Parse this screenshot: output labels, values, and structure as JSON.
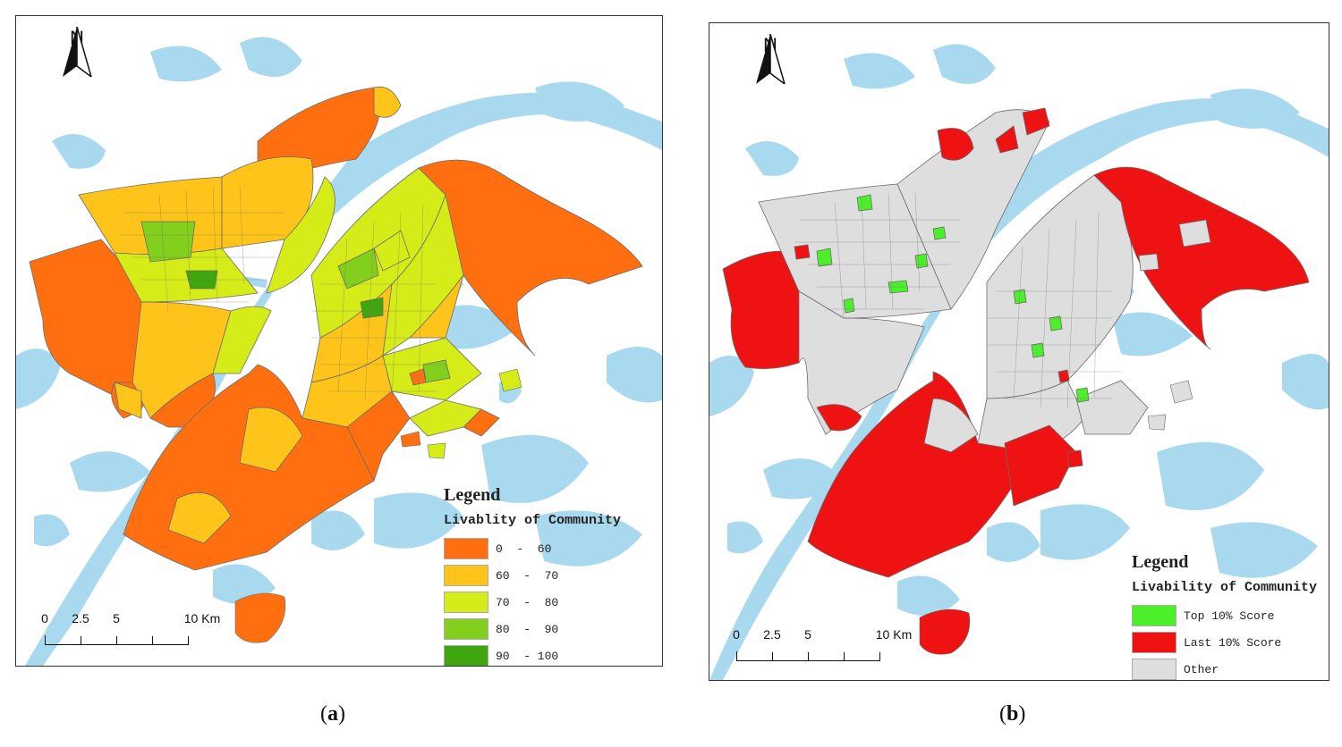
{
  "colors": {
    "water": "#a9d9ee",
    "background": "#ffffff",
    "boundary": "#6b6b6b",
    "band_0_60": "#ff6f0f",
    "band_60_70": "#ffc41a",
    "band_70_80": "#d6ec19",
    "band_80_90": "#83cf1e",
    "band_90_100": "#3fa60d",
    "top10": "#4cf02a",
    "last10": "#ee1212",
    "other": "#dedede"
  },
  "panel_a": {
    "north_label": "N",
    "legend": {
      "title": "Legend",
      "subtitle": "Livablity of Community",
      "items": [
        {
          "label": "0  -  60",
          "color": "#ff6f0f"
        },
        {
          "label": "60  -  70",
          "color": "#ffc41a"
        },
        {
          "label": "70  -  80",
          "color": "#d6ec19"
        },
        {
          "label": "80  -  90",
          "color": "#83cf1e"
        },
        {
          "label": "90  - 100",
          "color": "#3fa60d"
        }
      ]
    },
    "scale": {
      "labels": [
        "0",
        "2.5",
        "5",
        "10 Km"
      ]
    },
    "caption": "a"
  },
  "panel_b": {
    "north_label": "N",
    "legend": {
      "title": "Legend",
      "subtitle": "Livability of Community",
      "items": [
        {
          "label": "Top 10% Score",
          "color": "#4cf02a"
        },
        {
          "label": "Last 10% Score",
          "color": "#ee1212"
        },
        {
          "label": "Other",
          "color": "#dedede"
        }
      ]
    },
    "scale": {
      "labels": [
        "0",
        "2.5",
        "5",
        "10 Km"
      ]
    },
    "caption": "b"
  }
}
